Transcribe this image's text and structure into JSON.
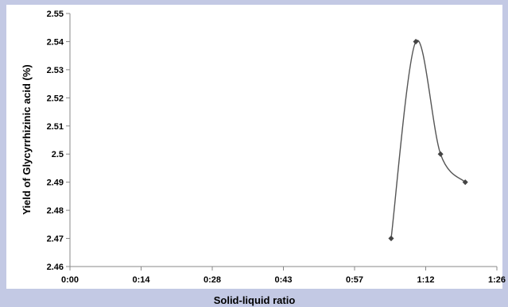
{
  "chart_data": {
    "type": "line",
    "title": "",
    "xlabel": "Solid-liquid ratio",
    "ylabel": "Yield of Glycyrrhizinic acid (%)",
    "x_ticks": [
      "0:00",
      "0:14",
      "0:28",
      "0:43",
      "0:57",
      "1:12",
      "1:26"
    ],
    "x_tick_minutes": [
      0,
      14.4,
      28.8,
      43.2,
      57.6,
      72,
      86.4
    ],
    "xlim_minutes": [
      0,
      86.4
    ],
    "y_ticks": [
      "2.46",
      "2.47",
      "2.48",
      "2.49",
      "2.5",
      "2.51",
      "2.52",
      "2.53",
      "2.54",
      "2.55"
    ],
    "ylim": [
      2.46,
      2.55
    ],
    "grid": false,
    "legend": "none",
    "smoothed": true,
    "line_color": "#555555",
    "marker_color": "#444444",
    "series": [
      {
        "x_minutes": [
          65,
          70,
          75,
          80
        ],
        "values": [
          2.47,
          2.54,
          2.5,
          2.49
        ]
      }
    ]
  }
}
